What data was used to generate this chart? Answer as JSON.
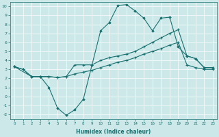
{
  "xlabel": "Humidex (Indice chaleur)",
  "ylabel": "",
  "bg_color": "#cce8e8",
  "line_color": "#1a7070",
  "xlim": [
    -0.5,
    23.5
  ],
  "ylim": [
    -2.5,
    10.5
  ],
  "xticks": [
    0,
    1,
    2,
    3,
    4,
    5,
    6,
    7,
    8,
    9,
    10,
    11,
    12,
    13,
    14,
    15,
    16,
    17,
    18,
    19,
    20,
    21,
    22,
    23
  ],
  "yticks": [
    -2,
    -1,
    0,
    1,
    2,
    3,
    4,
    5,
    6,
    7,
    8,
    9,
    10
  ],
  "line1_x": [
    0,
    1,
    2,
    3,
    4,
    5,
    6,
    7,
    8,
    9,
    10,
    11,
    12,
    13,
    14,
    15,
    16,
    17,
    18,
    19,
    20,
    21,
    22,
    23
  ],
  "line1_y": [
    3.3,
    3.0,
    2.2,
    2.2,
    2.2,
    2.1,
    2.2,
    3.5,
    3.5,
    3.5,
    4.0,
    4.3,
    4.5,
    4.7,
    5.0,
    5.5,
    6.0,
    6.5,
    7.0,
    7.4,
    4.5,
    4.2,
    3.2,
    3.2
  ],
  "line2_x": [
    0,
    2,
    3,
    4,
    5,
    6,
    7,
    8,
    9,
    10,
    11,
    12,
    13,
    14,
    15,
    16,
    17,
    18,
    19,
    20,
    21,
    22,
    23
  ],
  "line2_y": [
    3.3,
    2.2,
    2.2,
    1.0,
    -1.3,
    -2.1,
    -1.5,
    -0.3,
    3.5,
    7.3,
    8.2,
    10.1,
    10.2,
    9.5,
    8.7,
    7.3,
    8.7,
    8.8,
    5.5,
    4.5,
    4.2,
    3.2,
    3.2
  ],
  "line3_x": [
    0,
    1,
    2,
    3,
    4,
    5,
    6,
    7,
    8,
    9,
    10,
    11,
    12,
    13,
    14,
    15,
    16,
    17,
    18,
    19,
    20,
    21,
    22,
    23
  ],
  "line3_y": [
    3.3,
    3.0,
    2.2,
    2.2,
    2.2,
    2.1,
    2.2,
    2.5,
    2.7,
    2.9,
    3.2,
    3.5,
    3.8,
    4.0,
    4.3,
    4.7,
    5.0,
    5.3,
    5.7,
    6.0,
    3.5,
    3.2,
    3.0,
    3.0
  ]
}
